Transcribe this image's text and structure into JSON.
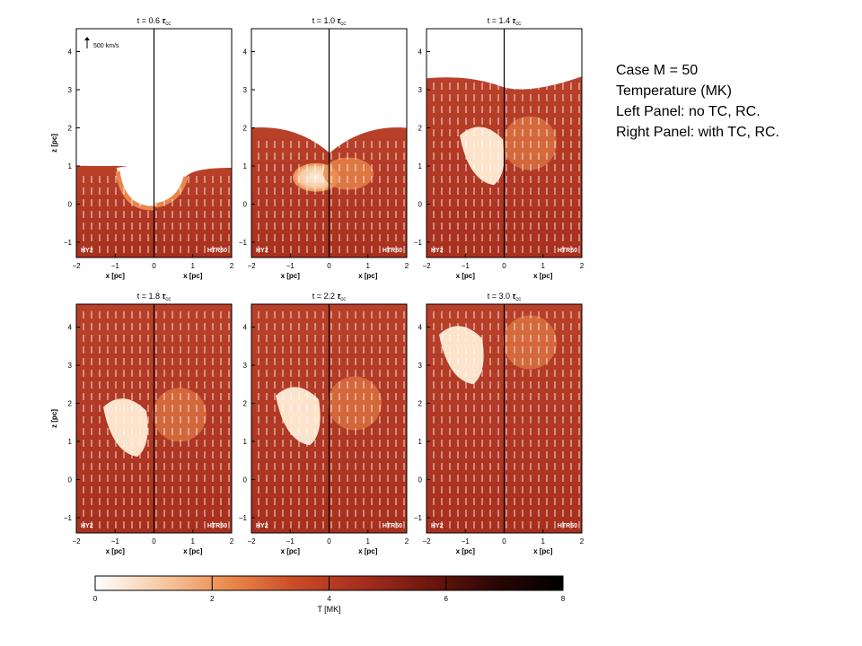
{
  "panels": [
    {
      "time": "t = 0.6",
      "left_label": "HY2",
      "right_label": "HTR50",
      "show_scale_arrow": true,
      "surface_level": 1.0
    },
    {
      "time": "t = 1.0",
      "left_label": "HY2",
      "right_label": "HTR50",
      "show_scale_arrow": false,
      "surface_level": 2.0
    },
    {
      "time": "t = 1.4",
      "left_label": "HY2",
      "right_label": "HTR50",
      "show_scale_arrow": false,
      "surface_level": 3.3
    },
    {
      "time": "t = 1.8",
      "left_label": "HY2",
      "right_label": "HTR50",
      "show_scale_arrow": false,
      "surface_level": 4.6
    },
    {
      "time": "t = 2.2",
      "left_label": "HY2",
      "right_label": "HTR50",
      "show_scale_arrow": false,
      "surface_level": 4.6
    },
    {
      "time": "t = 3.0",
      "left_label": "HY2",
      "right_label": "HTR50",
      "show_scale_arrow": false,
      "surface_level": 4.6
    }
  ],
  "time_unit": "τcc",
  "scale_arrow_label": "500 km/s",
  "xlabel": "x [pc]",
  "ylabel": "z [pc]",
  "x_ticks": [
    "−2",
    "−1",
    "0",
    "1",
    "2"
  ],
  "y_ticks": [
    "−1",
    "0",
    "1",
    "2",
    "3",
    "4"
  ],
  "colorbar": {
    "label": "T [MK]",
    "ticks": [
      "0",
      "2",
      "4",
      "6",
      "8"
    ],
    "range": [
      0,
      8
    ],
    "colors": [
      "#ffffff",
      "#f6c9a3",
      "#eb8a4c",
      "#c94a26",
      "#a62e1e",
      "#6e160e",
      "#2a0503",
      "#000000"
    ]
  },
  "colors": {
    "hot_gas": "#b33a22",
    "cloud": "#fbe3cc",
    "shell": "#e9874b",
    "empty": "#ffffff"
  },
  "caption": {
    "line1": "Case M = 50",
    "line2": "Temperature (MK)",
    "line3": "Left Panel: no TC, RC.",
    "line4": "Right Panel: with TC, RC."
  }
}
